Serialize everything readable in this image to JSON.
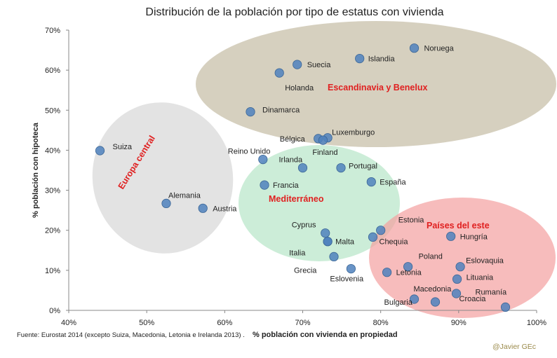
{
  "chart_data": {
    "type": "scatter",
    "title": "Distribución de la población por tipo de estatus con  vivienda",
    "xlabel": "% población  con vivienda  en propiedad",
    "ylabel": "% población con hipoteca",
    "xlim": [
      40,
      100
    ],
    "ylim": [
      0,
      70
    ],
    "xticks": [
      "40%",
      "50%",
      "60%",
      "70%",
      "80%",
      "90%",
      "100%"
    ],
    "yticks": [
      "0%",
      "10%",
      "20%",
      "30%",
      "40%",
      "50%",
      "60%",
      "70%"
    ],
    "colors": {
      "marker": "#4f81bd",
      "group_ellipse_scandinavia": "#c8c0aa",
      "group_ellipse_central": "#d9d9d9",
      "group_ellipse_mediterranean": "#b6e6c8",
      "group_ellipse_east": "#f4a0a0",
      "group_label": "#e02020"
    },
    "groups": [
      {
        "name": "Escandinavia y  Benelux",
        "members": [
          "Noruega",
          "Islandia",
          "Suecia",
          "Holanda",
          "Dinamarca",
          "Bélgica",
          "Luxemburgo",
          "Finland"
        ]
      },
      {
        "name": "Europa central",
        "members": [
          "Suiza",
          "Alemania",
          "Austria"
        ]
      },
      {
        "name": "Mediterráneo",
        "members": [
          "Irlanda",
          "Portugal",
          "España",
          "Francia",
          "Cyprus",
          "Malta",
          "Italia",
          "Grecia"
        ]
      },
      {
        "name": "Países del este",
        "members": [
          "Estonia",
          "Hungría",
          "Chequia",
          "Poland",
          "Eslovaquia",
          "Letonia",
          "Lituania",
          "Eslovenia",
          "Macedonia",
          "Bulgaria",
          "Croacia",
          "Rumanía"
        ]
      }
    ],
    "points": [
      {
        "label": "Noruega",
        "x": 84.3,
        "y": 65.5
      },
      {
        "label": "Islandia",
        "x": 77.3,
        "y": 62.9
      },
      {
        "label": "Suecia",
        "x": 69.3,
        "y": 61.4
      },
      {
        "label": "Holanda",
        "x": 67.0,
        "y": 59.3
      },
      {
        "label": "Dinamarca",
        "x": 63.3,
        "y": 49.6
      },
      {
        "label": "Bélgica",
        "x": 72.0,
        "y": 42.9
      },
      {
        "label": "Luxemburgo",
        "x": 73.2,
        "y": 43.1
      },
      {
        "label": "Finland",
        "x": 72.6,
        "y": 42.5
      },
      {
        "label": "Suiza",
        "x": 44.0,
        "y": 39.9
      },
      {
        "label": "Reino Unido",
        "x": 64.9,
        "y": 37.7
      },
      {
        "label": "Irlanda",
        "x": 70.0,
        "y": 35.6
      },
      {
        "label": "Portugal",
        "x": 74.9,
        "y": 35.6
      },
      {
        "label": "España",
        "x": 78.8,
        "y": 32.1
      },
      {
        "label": "Francia",
        "x": 65.1,
        "y": 31.3
      },
      {
        "label": "Alemania",
        "x": 52.5,
        "y": 26.7
      },
      {
        "label": "Austria",
        "x": 57.2,
        "y": 25.5
      },
      {
        "label": "Cyprus",
        "x": 72.9,
        "y": 19.3
      },
      {
        "label": "Malta",
        "x": 73.2,
        "y": 17.2
      },
      {
        "label": "Italia",
        "x": 73.2,
        "y": 17.2
      },
      {
        "label": "Estonia",
        "x": 80.0,
        "y": 20.0
      },
      {
        "label": "Chequia",
        "x": 79.0,
        "y": 18.3
      },
      {
        "label": "Hungría",
        "x": 89.0,
        "y": 18.5
      },
      {
        "label": "Grecia",
        "x": 74.0,
        "y": 13.4
      },
      {
        "label": "Eslovenia",
        "x": 76.2,
        "y": 10.4
      },
      {
        "label": "Poland",
        "x": 83.5,
        "y": 10.9
      },
      {
        "label": "Eslovaquia",
        "x": 90.2,
        "y": 10.9
      },
      {
        "label": "Letonia",
        "x": 80.8,
        "y": 9.5
      },
      {
        "label": "Lituania",
        "x": 89.8,
        "y": 7.8
      },
      {
        "label": "Macedonia",
        "x": 84.3,
        "y": 2.8
      },
      {
        "label": "Bulgaria",
        "x": 87.0,
        "y": 2.1
      },
      {
        "label": "Croacia",
        "x": 89.7,
        "y": 4.2
      },
      {
        "label": "Rumanía",
        "x": 96.0,
        "y": 0.8
      }
    ]
  },
  "footer": {
    "source": "Fuente: Eurostat 2014 (excepto Suiza, Macedonia, Letonia e Irelanda 2013) .",
    "credit": "@Javier GEc"
  }
}
